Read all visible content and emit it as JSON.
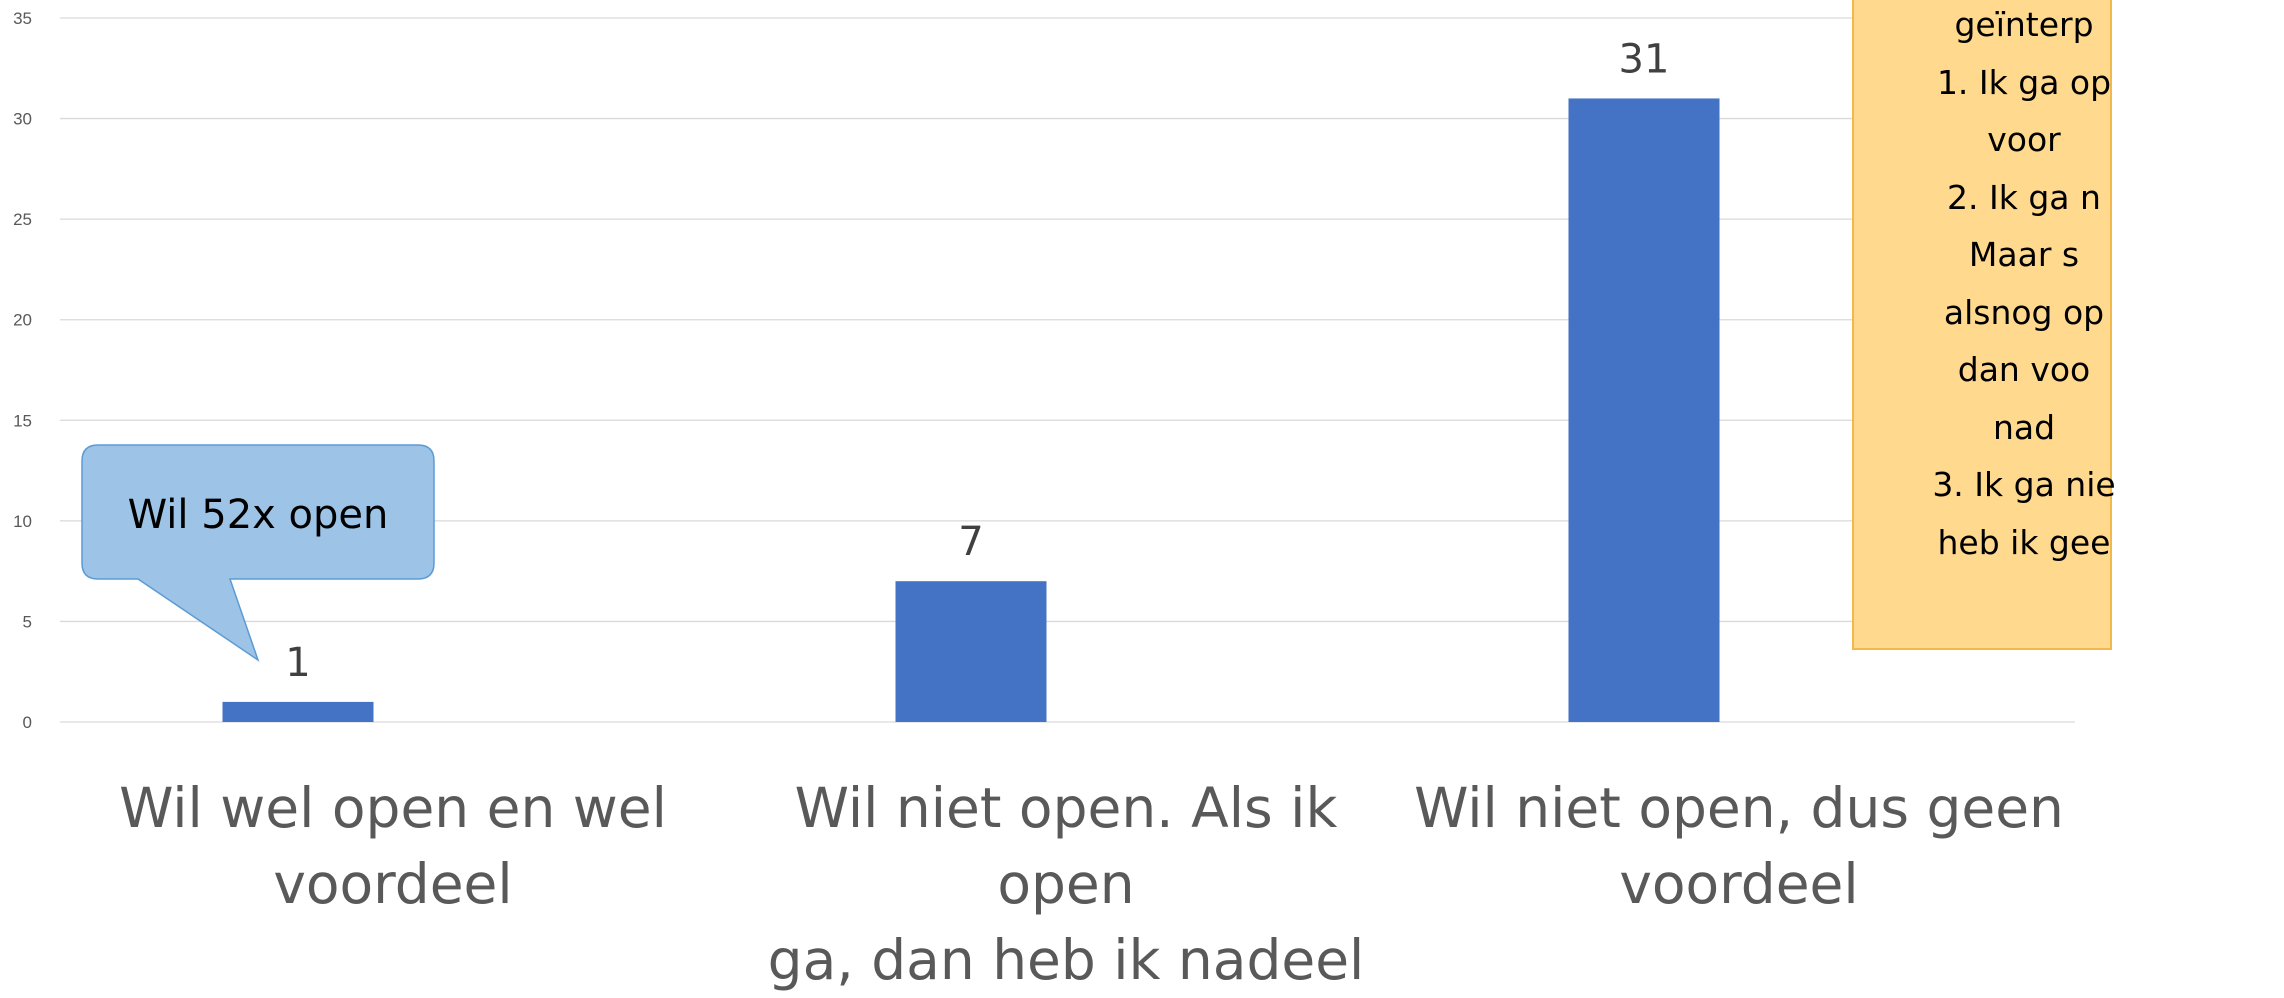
{
  "chart_data": {
    "type": "bar",
    "categories": [
      "Wil wel open en wel voordeel",
      "Wil niet open. Als ik open ga, dan heb ik nadeel",
      "Wil niet open, dus geen voordeel"
    ],
    "category_lines": [
      [
        "Wil wel open en wel",
        "voordeel"
      ],
      [
        "Wil niet open. Als ik open",
        "ga, dan heb ik nadeel"
      ],
      [
        "Wil niet open, dus geen",
        "voordeel"
      ]
    ],
    "values": [
      1,
      7,
      31
    ],
    "data_labels": [
      "1",
      "7",
      "31"
    ],
    "ylim": [
      0,
      35
    ],
    "yticks": [
      "0",
      "5",
      "10",
      "15",
      "20",
      "25",
      "30",
      "35"
    ],
    "grid": true,
    "bar_color": "#4472c4",
    "annotations": [
      {
        "type": "callout",
        "text": "Wil 52x open",
        "points_to": "Wil wel open en wel voordeel"
      }
    ]
  },
  "note": {
    "text": "geïnterp\n1. Ik ga op\nvoor\n2. Ik ga n\nMaar s\nalsnog op\ndan voo\nnad\n3. Ik ga nie\nheb ik gee",
    "background": "#ffd98e",
    "border": "#f2b84b"
  }
}
